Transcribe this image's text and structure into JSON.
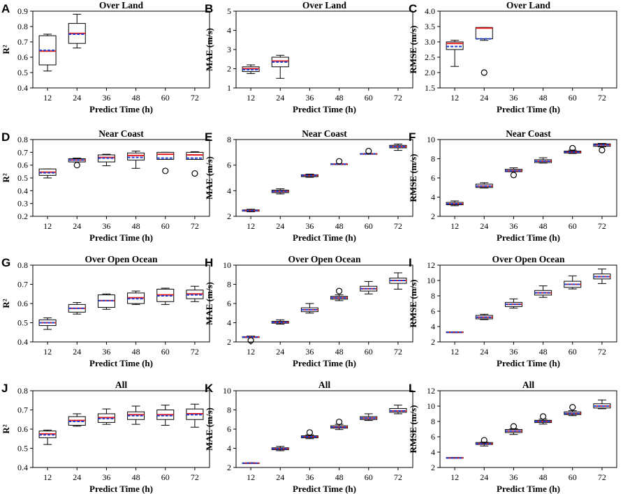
{
  "figure": {
    "categories": [
      "12",
      "24",
      "36",
      "48",
      "60",
      "72"
    ],
    "colors": {
      "box": "#000000",
      "median": "#e41a1c",
      "mean": "#1f3fd6",
      "outlier": "#000000"
    }
  },
  "chart_data": [
    {
      "letter": "A",
      "type": "box",
      "title": "Over Land",
      "xlabel": "Predict Time (h)",
      "ylabel": "R²",
      "ylim": [
        0.4,
        0.9
      ],
      "yticks": [
        "0.4",
        "0.5",
        "0.6",
        "0.7",
        "0.8",
        "0.9"
      ],
      "boxes": [
        {
          "x": "12",
          "wmin": 0.51,
          "q1": 0.55,
          "median": 0.64,
          "mean": 0.645,
          "q3": 0.74,
          "wmax": 0.75,
          "outliers": []
        },
        {
          "x": "24",
          "wmin": 0.66,
          "q1": 0.69,
          "median": 0.755,
          "mean": 0.75,
          "q3": 0.82,
          "wmax": 0.88,
          "outliers": []
        }
      ]
    },
    {
      "letter": "B",
      "type": "box",
      "title": "Over Land",
      "xlabel": "Predict Time (h)",
      "ylabel": "MAE (m/s)",
      "ylim": [
        1,
        5
      ],
      "yticks": [
        "1",
        "2",
        "3",
        "4",
        "5"
      ],
      "boxes": [
        {
          "x": "12",
          "wmin": 1.75,
          "q1": 1.85,
          "median": 2.0,
          "mean": 1.95,
          "q3": 2.1,
          "wmax": 2.2,
          "outliers": []
        },
        {
          "x": "24",
          "wmin": 1.5,
          "q1": 2.1,
          "median": 2.4,
          "mean": 2.35,
          "q3": 2.6,
          "wmax": 2.7,
          "outliers": []
        }
      ]
    },
    {
      "letter": "C",
      "type": "box",
      "title": "Over Land",
      "xlabel": "Predict Time (h)",
      "ylabel": "RMSE (m/s)",
      "ylim": [
        1.5,
        4
      ],
      "yticks": [
        "1.5",
        "2.0",
        "2.5",
        "3.0",
        "3.5",
        "4.0"
      ],
      "boxes": [
        {
          "x": "12",
          "wmin": 2.2,
          "q1": 2.75,
          "median": 2.95,
          "mean": 2.85,
          "q3": 3.0,
          "wmax": 3.05,
          "outliers": []
        },
        {
          "x": "24",
          "wmin": 3.05,
          "q1": 3.1,
          "median": 3.45,
          "mean": 3.1,
          "q3": 3.47,
          "wmax": 3.47,
          "outliers": [
            2.0
          ]
        }
      ]
    },
    {
      "letter": "D",
      "type": "box",
      "title": "Near Coast",
      "xlabel": "Predict Time (h)",
      "ylabel": "R²",
      "ylim": [
        0.2,
        0.8
      ],
      "yticks": [
        "0.2",
        "0.3",
        "0.4",
        "0.5",
        "0.6",
        "0.7",
        "0.8"
      ],
      "boxes": [
        {
          "x": "12",
          "wmin": 0.5,
          "q1": 0.52,
          "median": 0.545,
          "mean": 0.54,
          "q3": 0.57,
          "wmax": 0.57,
          "outliers": []
        },
        {
          "x": "24",
          "wmin": 0.625,
          "q1": 0.625,
          "median": 0.64,
          "mean": 0.64,
          "q3": 0.65,
          "wmax": 0.655,
          "outliers": [
            0.6
          ]
        },
        {
          "x": "36",
          "wmin": 0.595,
          "q1": 0.625,
          "median": 0.66,
          "mean": 0.655,
          "q3": 0.68,
          "wmax": 0.685,
          "outliers": []
        },
        {
          "x": "48",
          "wmin": 0.575,
          "q1": 0.64,
          "median": 0.675,
          "mean": 0.66,
          "q3": 0.695,
          "wmax": 0.71,
          "outliers": []
        },
        {
          "x": "60",
          "wmin": 0.645,
          "q1": 0.645,
          "median": 0.685,
          "mean": 0.655,
          "q3": 0.7,
          "wmax": 0.7,
          "outliers": [
            0.555
          ]
        },
        {
          "x": "72",
          "wmin": 0.645,
          "q1": 0.645,
          "median": 0.68,
          "mean": 0.655,
          "q3": 0.7,
          "wmax": 0.705,
          "outliers": [
            0.535
          ]
        }
      ]
    },
    {
      "letter": "E",
      "type": "box",
      "title": "Near Coast",
      "xlabel": "Predict Time (h)",
      "ylabel": "MAE (m/s)",
      "ylim": [
        2,
        8
      ],
      "yticks": [
        "2",
        "4",
        "6",
        "8"
      ],
      "boxes": [
        {
          "x": "12",
          "wmin": 2.35,
          "q1": 2.4,
          "median": 2.45,
          "mean": 2.45,
          "q3": 2.5,
          "wmax": 2.55,
          "outliers": []
        },
        {
          "x": "24",
          "wmin": 3.75,
          "q1": 3.85,
          "median": 3.95,
          "mean": 3.95,
          "q3": 4.05,
          "wmax": 4.15,
          "outliers": []
        },
        {
          "x": "36",
          "wmin": 5.05,
          "q1": 5.1,
          "median": 5.2,
          "mean": 5.2,
          "q3": 5.25,
          "wmax": 5.3,
          "outliers": []
        },
        {
          "x": "48",
          "wmin": 6.05,
          "q1": 6.05,
          "median": 6.08,
          "mean": 6.08,
          "q3": 6.1,
          "wmax": 6.12,
          "outliers": [
            6.3
          ]
        },
        {
          "x": "60",
          "wmin": 6.85,
          "q1": 6.85,
          "median": 6.88,
          "mean": 6.88,
          "q3": 6.9,
          "wmax": 6.92,
          "outliers": [
            7.1
          ]
        },
        {
          "x": "72",
          "wmin": 7.15,
          "q1": 7.35,
          "median": 7.45,
          "mean": 7.45,
          "q3": 7.55,
          "wmax": 7.65,
          "outliers": []
        }
      ]
    },
    {
      "letter": "F",
      "type": "box",
      "title": "Near Coast",
      "xlabel": "Predict Time (h)",
      "ylabel": "RMSE (m/s)",
      "ylim": [
        2,
        10
      ],
      "yticks": [
        "2",
        "4",
        "6",
        "8",
        "10"
      ],
      "boxes": [
        {
          "x": "12",
          "wmin": 3.1,
          "q1": 3.2,
          "median": 3.3,
          "mean": 3.3,
          "q3": 3.45,
          "wmax": 3.6,
          "outliers": []
        },
        {
          "x": "24",
          "wmin": 4.95,
          "q1": 5.0,
          "median": 5.15,
          "mean": 5.15,
          "q3": 5.35,
          "wmax": 5.5,
          "outliers": []
        },
        {
          "x": "36",
          "wmin": 6.65,
          "q1": 6.65,
          "median": 6.75,
          "mean": 6.75,
          "q3": 6.9,
          "wmax": 7.05,
          "outliers": [
            6.3
          ]
        },
        {
          "x": "48",
          "wmin": 7.55,
          "q1": 7.6,
          "median": 7.75,
          "mean": 7.75,
          "q3": 7.9,
          "wmax": 8.1,
          "outliers": []
        },
        {
          "x": "60",
          "wmin": 8.55,
          "q1": 8.6,
          "median": 8.7,
          "mean": 8.7,
          "q3": 8.8,
          "wmax": 8.9,
          "outliers": [
            9.1
          ]
        },
        {
          "x": "72",
          "wmin": 9.25,
          "q1": 9.3,
          "median": 9.45,
          "mean": 9.45,
          "q3": 9.55,
          "wmax": 9.6,
          "outliers": [
            8.9
          ]
        }
      ]
    },
    {
      "letter": "G",
      "type": "box",
      "title": "Over Open Ocean",
      "xlabel": "Predict Time (h)",
      "ylabel": "R²",
      "ylim": [
        0.4,
        0.8
      ],
      "yticks": [
        "0.4",
        "0.5",
        "0.6",
        "0.7",
        "0.8"
      ],
      "boxes": [
        {
          "x": "12",
          "wmin": 0.465,
          "q1": 0.485,
          "median": 0.5,
          "mean": 0.5,
          "q3": 0.515,
          "wmax": 0.525,
          "outliers": []
        },
        {
          "x": "24",
          "wmin": 0.545,
          "q1": 0.555,
          "median": 0.575,
          "mean": 0.575,
          "q3": 0.595,
          "wmax": 0.605,
          "outliers": []
        },
        {
          "x": "36",
          "wmin": 0.57,
          "q1": 0.58,
          "median": 0.615,
          "mean": 0.615,
          "q3": 0.645,
          "wmax": 0.65,
          "outliers": []
        },
        {
          "x": "48",
          "wmin": 0.595,
          "q1": 0.6,
          "median": 0.63,
          "mean": 0.625,
          "q3": 0.655,
          "wmax": 0.665,
          "outliers": []
        },
        {
          "x": "60",
          "wmin": 0.595,
          "q1": 0.61,
          "median": 0.645,
          "mean": 0.64,
          "q3": 0.675,
          "wmax": 0.68,
          "outliers": []
        },
        {
          "x": "72",
          "wmin": 0.61,
          "q1": 0.625,
          "median": 0.65,
          "mean": 0.645,
          "q3": 0.67,
          "wmax": 0.69,
          "outliers": []
        }
      ]
    },
    {
      "letter": "H",
      "type": "box",
      "title": "Over Open Ocean",
      "xlabel": "Predict Time (h)",
      "ylabel": "MAE (m/s)",
      "ylim": [
        2,
        10
      ],
      "yticks": [
        "2",
        "4",
        "6",
        "8",
        "10"
      ],
      "boxes": [
        {
          "x": "12",
          "wmin": 2.45,
          "q1": 2.45,
          "median": 2.5,
          "mean": 2.5,
          "q3": 2.55,
          "wmax": 2.6,
          "outliers": [
            2.15
          ]
        },
        {
          "x": "24",
          "wmin": 3.85,
          "q1": 3.95,
          "median": 4.05,
          "mean": 4.05,
          "q3": 4.15,
          "wmax": 4.3,
          "outliers": []
        },
        {
          "x": "36",
          "wmin": 5.0,
          "q1": 5.15,
          "median": 5.35,
          "mean": 5.35,
          "q3": 5.55,
          "wmax": 6.0,
          "outliers": []
        },
        {
          "x": "48",
          "wmin": 6.3,
          "q1": 6.45,
          "median": 6.6,
          "mean": 6.6,
          "q3": 6.75,
          "wmax": 6.9,
          "outliers": [
            7.3
          ]
        },
        {
          "x": "60",
          "wmin": 7.0,
          "q1": 7.3,
          "median": 7.55,
          "mean": 7.55,
          "q3": 7.8,
          "wmax": 8.3,
          "outliers": []
        },
        {
          "x": "72",
          "wmin": 7.5,
          "q1": 8.1,
          "median": 8.4,
          "mean": 8.4,
          "q3": 8.65,
          "wmax": 9.2,
          "outliers": []
        }
      ]
    },
    {
      "letter": "I",
      "type": "box",
      "title": "Over Open Ocean",
      "xlabel": "Predict Time (h)",
      "ylabel": "RMSE (m/s)",
      "ylim": [
        2,
        12
      ],
      "yticks": [
        "2",
        "4",
        "6",
        "8",
        "10",
        "12"
      ],
      "boxes": [
        {
          "x": "12",
          "wmin": 3.2,
          "q1": 3.2,
          "median": 3.25,
          "mean": 3.25,
          "q3": 3.3,
          "wmax": 3.3,
          "outliers": []
        },
        {
          "x": "24",
          "wmin": 4.9,
          "q1": 5.0,
          "median": 5.2,
          "mean": 5.2,
          "q3": 5.45,
          "wmax": 5.6,
          "outliers": []
        },
        {
          "x": "36",
          "wmin": 6.4,
          "q1": 6.6,
          "median": 6.9,
          "mean": 6.9,
          "q3": 7.15,
          "wmax": 7.6,
          "outliers": []
        },
        {
          "x": "48",
          "wmin": 7.8,
          "q1": 8.1,
          "median": 8.4,
          "mean": 8.4,
          "q3": 8.7,
          "wmax": 9.3,
          "outliers": []
        },
        {
          "x": "60",
          "wmin": 8.9,
          "q1": 9.1,
          "median": 9.5,
          "mean": 9.5,
          "q3": 9.9,
          "wmax": 10.6,
          "outliers": []
        },
        {
          "x": "72",
          "wmin": 9.6,
          "q1": 10.2,
          "median": 10.5,
          "mean": 10.5,
          "q3": 10.85,
          "wmax": 11.5,
          "outliers": []
        }
      ]
    },
    {
      "letter": "J",
      "type": "box",
      "title": "All",
      "xlabel": "Predict Time (h)",
      "ylabel": "R²",
      "ylim": [
        0.4,
        0.8
      ],
      "yticks": [
        "0.4",
        "0.5",
        "0.6",
        "0.7",
        "0.8"
      ],
      "boxes": [
        {
          "x": "12",
          "wmin": 0.52,
          "q1": 0.555,
          "median": 0.575,
          "mean": 0.57,
          "q3": 0.59,
          "wmax": 0.595,
          "outliers": []
        },
        {
          "x": "24",
          "wmin": 0.615,
          "q1": 0.62,
          "median": 0.645,
          "mean": 0.64,
          "q3": 0.665,
          "wmax": 0.68,
          "outliers": []
        },
        {
          "x": "36",
          "wmin": 0.625,
          "q1": 0.635,
          "median": 0.66,
          "mean": 0.655,
          "q3": 0.68,
          "wmax": 0.705,
          "outliers": []
        },
        {
          "x": "48",
          "wmin": 0.625,
          "q1": 0.65,
          "median": 0.675,
          "mean": 0.67,
          "q3": 0.69,
          "wmax": 0.72,
          "outliers": []
        },
        {
          "x": "60",
          "wmin": 0.62,
          "q1": 0.65,
          "median": 0.675,
          "mean": 0.67,
          "q3": 0.7,
          "wmax": 0.725,
          "outliers": []
        },
        {
          "x": "72",
          "wmin": 0.61,
          "q1": 0.65,
          "median": 0.68,
          "mean": 0.675,
          "q3": 0.705,
          "wmax": 0.73,
          "outliers": []
        }
      ]
    },
    {
      "letter": "K",
      "type": "box",
      "title": "All",
      "xlabel": "Predict Time (h)",
      "ylabel": "MAE (m/s)",
      "ylim": [
        2,
        10
      ],
      "yticks": [
        "2",
        "4",
        "6",
        "8",
        "10"
      ],
      "boxes": [
        {
          "x": "12",
          "wmin": 2.4,
          "q1": 2.42,
          "median": 2.45,
          "mean": 2.45,
          "q3": 2.48,
          "wmax": 2.5,
          "outliers": []
        },
        {
          "x": "24",
          "wmin": 3.75,
          "q1": 3.85,
          "median": 3.95,
          "mean": 3.95,
          "q3": 4.05,
          "wmax": 4.2,
          "outliers": []
        },
        {
          "x": "36",
          "wmin": 5.0,
          "q1": 5.1,
          "median": 5.2,
          "mean": 5.2,
          "q3": 5.3,
          "wmax": 5.4,
          "outliers": [
            5.65
          ]
        },
        {
          "x": "48",
          "wmin": 5.95,
          "q1": 6.1,
          "median": 6.2,
          "mean": 6.2,
          "q3": 6.35,
          "wmax": 6.5,
          "outliers": [
            6.75
          ]
        },
        {
          "x": "60",
          "wmin": 6.9,
          "q1": 7.0,
          "median": 7.15,
          "mean": 7.15,
          "q3": 7.3,
          "wmax": 7.6,
          "outliers": []
        },
        {
          "x": "72",
          "wmin": 7.6,
          "q1": 7.75,
          "median": 7.9,
          "mean": 7.9,
          "q3": 8.15,
          "wmax": 8.5,
          "outliers": []
        }
      ]
    },
    {
      "letter": "L",
      "type": "box",
      "title": "All",
      "xlabel": "Predict Time (h)",
      "ylabel": "RMSE (m/s)",
      "ylim": [
        2,
        12
      ],
      "yticks": [
        "2",
        "4",
        "6",
        "8",
        "10",
        "12"
      ],
      "boxes": [
        {
          "x": "12",
          "wmin": 3.2,
          "q1": 3.22,
          "median": 3.25,
          "mean": 3.25,
          "q3": 3.3,
          "wmax": 3.32,
          "outliers": []
        },
        {
          "x": "24",
          "wmin": 4.8,
          "q1": 5.0,
          "median": 5.1,
          "mean": 5.1,
          "q3": 5.25,
          "wmax": 5.3,
          "outliers": [
            5.55
          ]
        },
        {
          "x": "36",
          "wmin": 6.3,
          "q1": 6.55,
          "median": 6.75,
          "mean": 6.75,
          "q3": 6.95,
          "wmax": 7.05,
          "outliers": [
            7.35
          ]
        },
        {
          "x": "48",
          "wmin": 7.65,
          "q1": 7.85,
          "median": 8.0,
          "mean": 8.0,
          "q3": 8.15,
          "wmax": 8.3,
          "outliers": [
            8.65
          ]
        },
        {
          "x": "60",
          "wmin": 8.75,
          "q1": 8.9,
          "median": 9.05,
          "mean": 9.05,
          "q3": 9.25,
          "wmax": 9.4,
          "outliers": [
            9.85
          ]
        },
        {
          "x": "72",
          "wmin": 9.65,
          "q1": 9.75,
          "median": 10.0,
          "mean": 10.0,
          "q3": 10.3,
          "wmax": 10.8,
          "outliers": []
        }
      ]
    }
  ]
}
